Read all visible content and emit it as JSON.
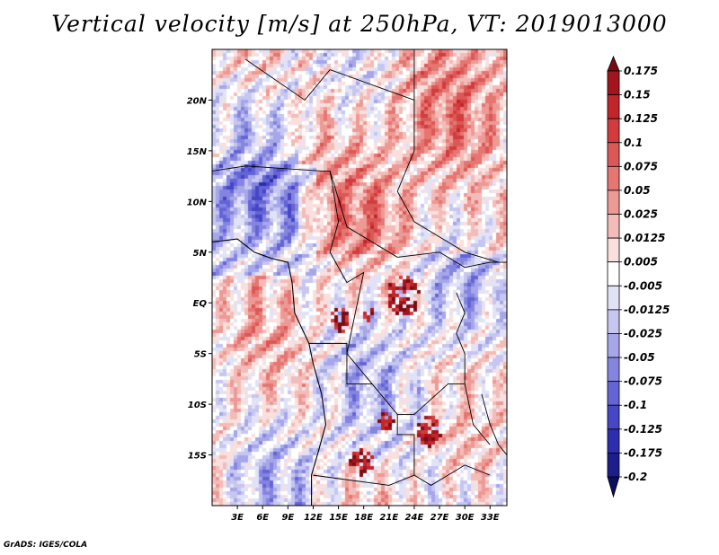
{
  "title": "Vertical velocity [m/s] at 250hPa, VT: 2019013000",
  "credit": "GrADS: IGES/COLA",
  "chart_data": {
    "type": "heatmap",
    "title": "Vertical velocity [m/s] at 250hPa, VT: 2019013000",
    "variable": "Vertical velocity",
    "units": "m/s",
    "level": "250hPa",
    "valid_time": "2019013000",
    "xlim": [
      0,
      35
    ],
    "ylim": [
      -20,
      25
    ],
    "x_ticks": [
      {
        "value": 3,
        "label": "3E"
      },
      {
        "value": 6,
        "label": "6E"
      },
      {
        "value": 9,
        "label": "9E"
      },
      {
        "value": 12,
        "label": "12E"
      },
      {
        "value": 15,
        "label": "15E"
      },
      {
        "value": 18,
        "label": "18E"
      },
      {
        "value": 21,
        "label": "21E"
      },
      {
        "value": 24,
        "label": "24E"
      },
      {
        "value": 27,
        "label": "27E"
      },
      {
        "value": 30,
        "label": "30E"
      },
      {
        "value": 33,
        "label": "33E"
      }
    ],
    "y_ticks": [
      {
        "value": 20,
        "label": "20N"
      },
      {
        "value": 15,
        "label": "15N"
      },
      {
        "value": 10,
        "label": "10N"
      },
      {
        "value": 5,
        "label": "5N"
      },
      {
        "value": 0,
        "label": "EQ"
      },
      {
        "value": -5,
        "label": "5S"
      },
      {
        "value": -10,
        "label": "10S"
      },
      {
        "value": -15,
        "label": "15S"
      }
    ],
    "colorbar": {
      "levels": [
        "0.175",
        "0.15",
        "0.125",
        "0.1",
        "0.075",
        "0.05",
        "0.025",
        "0.0125",
        "0.005",
        "-0.005",
        "-0.0125",
        "-0.025",
        "-0.05",
        "-0.075",
        "-0.1",
        "-0.125",
        "-0.175",
        "-0.2"
      ],
      "colors": [
        "#7a0b12",
        "#a3151c",
        "#c2262b",
        "#d23c3e",
        "#dc5856",
        "#e57672",
        "#ed9a95",
        "#f3bcb8",
        "#f9dfdd",
        "#ffffff",
        "#e2e2f7",
        "#c6c6f1",
        "#a6a6ea",
        "#8585e0",
        "#6464d6",
        "#4646c6",
        "#2d2daf",
        "#1d1d8c",
        "#0e0e5e"
      ]
    },
    "grid": false
  }
}
